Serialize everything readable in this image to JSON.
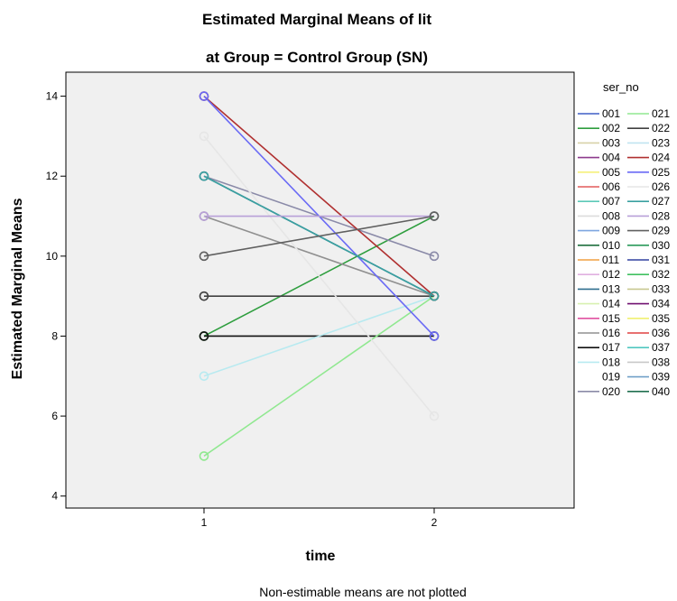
{
  "chart_data": {
    "type": "line",
    "title": "Estimated Marginal Means of lit",
    "subtitle": "at Group = Control Group (SN)",
    "xlabel": "time",
    "ylabel": "Estimated Marginal Means",
    "footnote": "Non-estimable means are not plotted",
    "categories": [
      "1",
      "2"
    ],
    "ylim": [
      3.7,
      14.6
    ],
    "yticks": [
      4,
      6,
      8,
      10,
      12,
      14
    ],
    "grid": false,
    "legend_title": "ser_no",
    "legend_position": "right",
    "series": [
      {
        "name": "001",
        "color": "#3f5ec5",
        "values": [
          null,
          null
        ]
      },
      {
        "name": "002",
        "color": "#2e9e3e",
        "values": [
          8,
          11
        ]
      },
      {
        "name": "003",
        "color": "#d8d2a8",
        "values": [
          null,
          null
        ]
      },
      {
        "name": "004",
        "color": "#8d3a8d",
        "values": [
          null,
          null
        ]
      },
      {
        "name": "005",
        "color": "#f5f07a",
        "values": [
          null,
          null
        ]
      },
      {
        "name": "006",
        "color": "#e25a5a",
        "values": [
          null,
          null
        ]
      },
      {
        "name": "007",
        "color": "#5cc9b8",
        "values": [
          null,
          null
        ]
      },
      {
        "name": "008",
        "color": "#dcdcdc",
        "values": [
          null,
          null
        ]
      },
      {
        "name": "009",
        "color": "#7ea6e0",
        "values": [
          null,
          null
        ]
      },
      {
        "name": "010",
        "color": "#1f6f3e",
        "values": [
          null,
          null
        ]
      },
      {
        "name": "011",
        "color": "#f0a040",
        "values": [
          null,
          null
        ]
      },
      {
        "name": "012",
        "color": "#e0b0e0",
        "values": [
          null,
          null
        ]
      },
      {
        "name": "013",
        "color": "#2f6f8f",
        "values": [
          12,
          9
        ]
      },
      {
        "name": "014",
        "color": "#d8f0b0",
        "values": [
          null,
          null
        ]
      },
      {
        "name": "015",
        "color": "#e050a0",
        "values": [
          null,
          null
        ]
      },
      {
        "name": "016",
        "color": "#909090",
        "values": [
          11,
          9
        ]
      },
      {
        "name": "017",
        "color": "#101010",
        "values": [
          8,
          8
        ]
      },
      {
        "name": "018",
        "color": "#b8eaf0",
        "values": [
          7,
          9
        ]
      },
      {
        "name": "019",
        "color": "#ffffff",
        "values": [
          null,
          null
        ]
      },
      {
        "name": "020",
        "color": "#8a8aa8",
        "values": [
          12,
          10
        ]
      },
      {
        "name": "021",
        "color": "#90e890",
        "values": [
          5,
          9
        ]
      },
      {
        "name": "022",
        "color": "#404040",
        "values": [
          9,
          9
        ]
      },
      {
        "name": "023",
        "color": "#c0e4f0",
        "values": [
          null,
          null
        ]
      },
      {
        "name": "024",
        "color": "#b03030",
        "values": [
          14,
          9
        ]
      },
      {
        "name": "025",
        "color": "#6a6af5",
        "values": [
          14,
          8
        ]
      },
      {
        "name": "026",
        "color": "#e6e6e6",
        "values": [
          13,
          6
        ]
      },
      {
        "name": "027",
        "color": "#3aa0a0",
        "values": [
          12,
          9
        ]
      },
      {
        "name": "028",
        "color": "#b8a0d8",
        "values": [
          11,
          11
        ]
      },
      {
        "name": "029",
        "color": "#606060",
        "values": [
          10,
          11
        ]
      },
      {
        "name": "030",
        "color": "#2a9a5a",
        "values": [
          null,
          null
        ]
      },
      {
        "name": "031",
        "color": "#3040a0",
        "values": [
          null,
          null
        ]
      },
      {
        "name": "032",
        "color": "#40c060",
        "values": [
          null,
          null
        ]
      },
      {
        "name": "033",
        "color": "#c8c890",
        "values": [
          null,
          null
        ]
      },
      {
        "name": "034",
        "color": "#701070",
        "values": [
          null,
          null
        ]
      },
      {
        "name": "035",
        "color": "#f0f070",
        "values": [
          null,
          null
        ]
      },
      {
        "name": "036",
        "color": "#e04040",
        "values": [
          null,
          null
        ]
      },
      {
        "name": "037",
        "color": "#50c8c0",
        "values": [
          null,
          null
        ]
      },
      {
        "name": "038",
        "color": "#c8c8c8",
        "values": [
          null,
          null
        ]
      },
      {
        "name": "039",
        "color": "#70a0c8",
        "values": [
          null,
          null
        ]
      },
      {
        "name": "040",
        "color": "#207050",
        "values": [
          null,
          null
        ]
      }
    ]
  }
}
